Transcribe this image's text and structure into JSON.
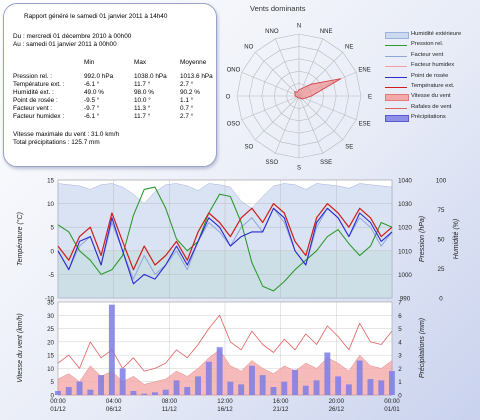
{
  "report": {
    "title": "Rapport généré le samedi 01 janvier 2011 à 14h40",
    "period_from": "Du : mercredi 01 décembre 2010 à 00h00",
    "period_to": "Au : samedi 01 janvier 2011 à 00h00",
    "columns": [
      "Min",
      "Max",
      "Moyenne"
    ],
    "rows": [
      {
        "label": "Pression rel. :",
        "min": "992.0 hPa",
        "max": "1038.0 hPa",
        "avg": "1013.6 hPa"
      },
      {
        "label": "Température ext. :",
        "min": "-6.1 °",
        "max": "11.7 °",
        "avg": "2.7 °"
      },
      {
        "label": "Humidité ext. :",
        "min": "49.0 %",
        "max": "98.0 %",
        "avg": "90.2 %"
      },
      {
        "label": "Point de rosée :",
        "min": "-9.5 °",
        "max": "10.0 °",
        "avg": "1.1 °"
      },
      {
        "label": "Facteur vent :",
        "min": "-9.7 °",
        "max": "11.3 °",
        "avg": "0.7 °"
      },
      {
        "label": "Facteur humidex :",
        "min": "-6.1 °",
        "max": "11.7 °",
        "avg": "2.7 °"
      }
    ],
    "max_wind": "Vitesse maximale du vent : 31.0 km/h",
    "total_precip": "Total précipitations : 125.7 mm"
  },
  "colors": {
    "humidity_fill": "#cdd9ef",
    "pressure": "#2e9a2e",
    "windchill": "#8fa6d8",
    "humidex": "#f2a0a0",
    "dewpoint": "#2a2ad0",
    "temperature": "#cc1f1f",
    "wind_speed_fill": "#f4a9a9",
    "wind_gust": "#e06060",
    "precip": "#7d7de6",
    "cold_zone": "#c9f0c9",
    "rose": "#f08a8a"
  },
  "chart_data": [
    {
      "type": "radar",
      "title": "Vents dominants",
      "directions": [
        "N",
        "NNE",
        "NE",
        "ENE",
        "E",
        "ESE",
        "SE",
        "SSE",
        "S",
        "SSO",
        "SO",
        "OSO",
        "O",
        "ONO",
        "NO",
        "NNO"
      ],
      "values": [
        3,
        4,
        8,
        22,
        6,
        3,
        2,
        1,
        1,
        1,
        1,
        1,
        2,
        2,
        3,
        2
      ],
      "rmax": 30
    },
    {
      "type": "line",
      "x_range": [
        "2010-12-01",
        "2011-01-01"
      ],
      "x_ticks": [
        {
          "time": "00:00",
          "date": "01/12"
        },
        {
          "time": "04:00",
          "date": "06/12"
        },
        {
          "time": "08:00",
          "date": "11/12"
        },
        {
          "time": "12:00",
          "date": "16/12"
        },
        {
          "time": "16:00",
          "date": "21/12"
        },
        {
          "time": "20:00",
          "date": "26/12"
        },
        {
          "time": "00:00",
          "date": "01/01"
        }
      ],
      "y_left": {
        "label": "Température (°C)",
        "range": [
          -10,
          15
        ],
        "ticks": [
          -10,
          -5,
          0,
          5,
          10,
          15
        ]
      },
      "y_right1": {
        "label": "Pression (hPa)",
        "range": [
          990,
          1040
        ],
        "ticks": [
          990,
          1000,
          1010,
          1020,
          1030,
          1040
        ]
      },
      "y_right2": {
        "label": "Humidité (%)",
        "range": [
          0,
          100
        ],
        "ticks": [
          0,
          25,
          50,
          75,
          100
        ]
      },
      "series": [
        {
          "name": "Humidité extérieure",
          "axis": "humidity",
          "x": [
            1,
            2,
            3,
            4,
            5,
            6,
            7,
            8,
            9,
            10,
            11,
            12,
            13,
            14,
            15,
            16,
            17,
            18,
            19,
            20,
            21,
            22,
            23,
            24,
            25,
            26,
            27,
            28,
            29,
            30,
            31,
            32
          ],
          "values": [
            97,
            96,
            95,
            92,
            96,
            97,
            94,
            88,
            80,
            90,
            96,
            97,
            95,
            91,
            97,
            96,
            94,
            82,
            76,
            86,
            95,
            97,
            96,
            92,
            97,
            96,
            95,
            93,
            97,
            96,
            95,
            94
          ]
        },
        {
          "name": "Pression rel.",
          "axis": "pressure",
          "x": [
            1,
            2,
            3,
            4,
            5,
            6,
            7,
            8,
            9,
            10,
            11,
            12,
            13,
            14,
            15,
            16,
            17,
            18,
            19,
            20,
            21,
            22,
            23,
            24,
            25,
            26,
            27,
            28,
            29,
            30,
            31,
            32
          ],
          "values": [
            1021,
            1018,
            1010,
            1006,
            1000,
            1002,
            1008,
            1025,
            1036,
            1037,
            1028,
            1015,
            1010,
            1014,
            1026,
            1034,
            1033,
            1022,
            1005,
            995,
            993,
            997,
            1002,
            1006,
            1010,
            1016,
            1019,
            1013,
            1008,
            1012,
            1022,
            1020
          ]
        },
        {
          "name": "Température ext.",
          "axis": "temperature",
          "x": [
            1,
            2,
            3,
            4,
            5,
            6,
            7,
            8,
            9,
            10,
            11,
            12,
            13,
            14,
            15,
            16,
            17,
            18,
            19,
            20,
            21,
            22,
            23,
            24,
            25,
            26,
            27,
            28,
            29,
            30,
            31,
            32
          ],
          "values": [
            1,
            -2,
            3,
            5,
            -1,
            8,
            2,
            -4,
            1,
            -3,
            -1,
            2,
            -2,
            4,
            8,
            6,
            3,
            7,
            9,
            6,
            10,
            8,
            2,
            -1,
            7,
            10,
            8,
            5,
            9,
            7,
            3,
            5
          ]
        },
        {
          "name": "Point de rosée",
          "axis": "temperature",
          "x": [
            1,
            2,
            3,
            4,
            5,
            6,
            7,
            8,
            9,
            10,
            11,
            12,
            13,
            14,
            15,
            16,
            17,
            18,
            19,
            20,
            21,
            22,
            23,
            24,
            25,
            26,
            27,
            28,
            29,
            30,
            31,
            32
          ],
          "values": [
            0,
            -4,
            2,
            3,
            -3,
            7,
            0,
            -7,
            -5,
            -6,
            -3,
            1,
            -3,
            2,
            7,
            5,
            1,
            3,
            4,
            4,
            9,
            7,
            0,
            -3,
            6,
            9,
            7,
            3,
            8,
            6,
            2,
            4
          ]
        },
        {
          "name": "Facteur vent",
          "axis": "temperature",
          "x": [
            1,
            2,
            3,
            4,
            5,
            6,
            7,
            8,
            9,
            10,
            11,
            12,
            13,
            14,
            15,
            16,
            17,
            18,
            19,
            20,
            21,
            22,
            23,
            24,
            25,
            26,
            27,
            28,
            29,
            30,
            31,
            32
          ],
          "values": [
            0,
            -4,
            1,
            3,
            -3,
            6,
            0,
            -6,
            -1,
            -5,
            -3,
            0,
            -4,
            2,
            6,
            4,
            1,
            5,
            7,
            4,
            9,
            6,
            0,
            -3,
            5,
            9,
            7,
            3,
            7,
            5,
            1,
            4
          ]
        },
        {
          "name": "Facteur humidex",
          "axis": "temperature",
          "x": [
            1,
            2,
            3,
            4,
            5,
            6,
            7,
            8,
            9,
            10,
            11,
            12,
            13,
            14,
            15,
            16,
            17,
            18,
            19,
            20,
            21,
            22,
            23,
            24,
            25,
            26,
            27,
            28,
            29,
            30,
            31,
            32
          ],
          "values": [
            1,
            -2,
            3,
            5,
            -1,
            8,
            2,
            -4,
            1,
            -3,
            -1,
            2,
            -2,
            4,
            8,
            6,
            3,
            7,
            9,
            6,
            10,
            8,
            2,
            -1,
            7,
            10,
            8,
            5,
            9,
            7,
            3,
            5
          ]
        }
      ]
    },
    {
      "type": "bar",
      "x_range": [
        "2010-12-01",
        "2011-01-01"
      ],
      "y_left": {
        "label": "Vitesse du vent (km/h)",
        "range": [
          0,
          35
        ],
        "ticks": [
          0,
          5,
          10,
          15,
          20,
          25,
          30,
          35
        ]
      },
      "y_right": {
        "label": "Précipitations (mm)",
        "range": [
          0,
          7
        ],
        "ticks": [
          0,
          1,
          2,
          3,
          4,
          5,
          6,
          7
        ]
      },
      "series": [
        {
          "name": "Vitesse du vent",
          "x": [
            1,
            2,
            3,
            4,
            5,
            6,
            7,
            8,
            9,
            10,
            11,
            12,
            13,
            14,
            15,
            16,
            17,
            18,
            19,
            20,
            21,
            22,
            23,
            24,
            25,
            26,
            27,
            28,
            29,
            30,
            31,
            32
          ],
          "values": [
            6,
            8,
            5,
            11,
            7,
            9,
            5,
            7,
            4,
            5,
            6,
            9,
            7,
            10,
            14,
            17,
            11,
            9,
            13,
            10,
            8,
            11,
            9,
            12,
            10,
            14,
            12,
            9,
            15,
            11,
            10,
            13
          ]
        },
        {
          "name": "Rafales de vent",
          "x": [
            1,
            2,
            3,
            4,
            5,
            6,
            7,
            8,
            9,
            10,
            11,
            12,
            13,
            14,
            15,
            16,
            17,
            18,
            19,
            20,
            21,
            22,
            23,
            24,
            25,
            26,
            27,
            28,
            29,
            30,
            31,
            32
          ],
          "values": [
            12,
            15,
            10,
            20,
            14,
            17,
            10,
            14,
            9,
            10,
            12,
            17,
            14,
            19,
            25,
            30,
            20,
            17,
            24,
            19,
            16,
            21,
            17,
            23,
            19,
            26,
            22,
            17,
            27,
            20,
            19,
            24
          ]
        },
        {
          "name": "Précipitations",
          "x": [
            1,
            2,
            3,
            4,
            5,
            6,
            7,
            8,
            9,
            10,
            11,
            12,
            13,
            14,
            15,
            16,
            17,
            18,
            19,
            20,
            21,
            22,
            23,
            24,
            25,
            26,
            27,
            28,
            29,
            30,
            31,
            32
          ],
          "values": [
            0.3,
            0.6,
            1.0,
            0.4,
            1.5,
            6.8,
            2.0,
            0.3,
            0.1,
            0.2,
            0.4,
            1.1,
            0.6,
            1.4,
            2.5,
            3.6,
            1.0,
            0.8,
            2.2,
            1.5,
            0.6,
            1.0,
            1.9,
            0.7,
            1.1,
            3.2,
            1.4,
            0.8,
            2.6,
            1.2,
            1.1,
            1.8
          ]
        }
      ]
    }
  ]
}
